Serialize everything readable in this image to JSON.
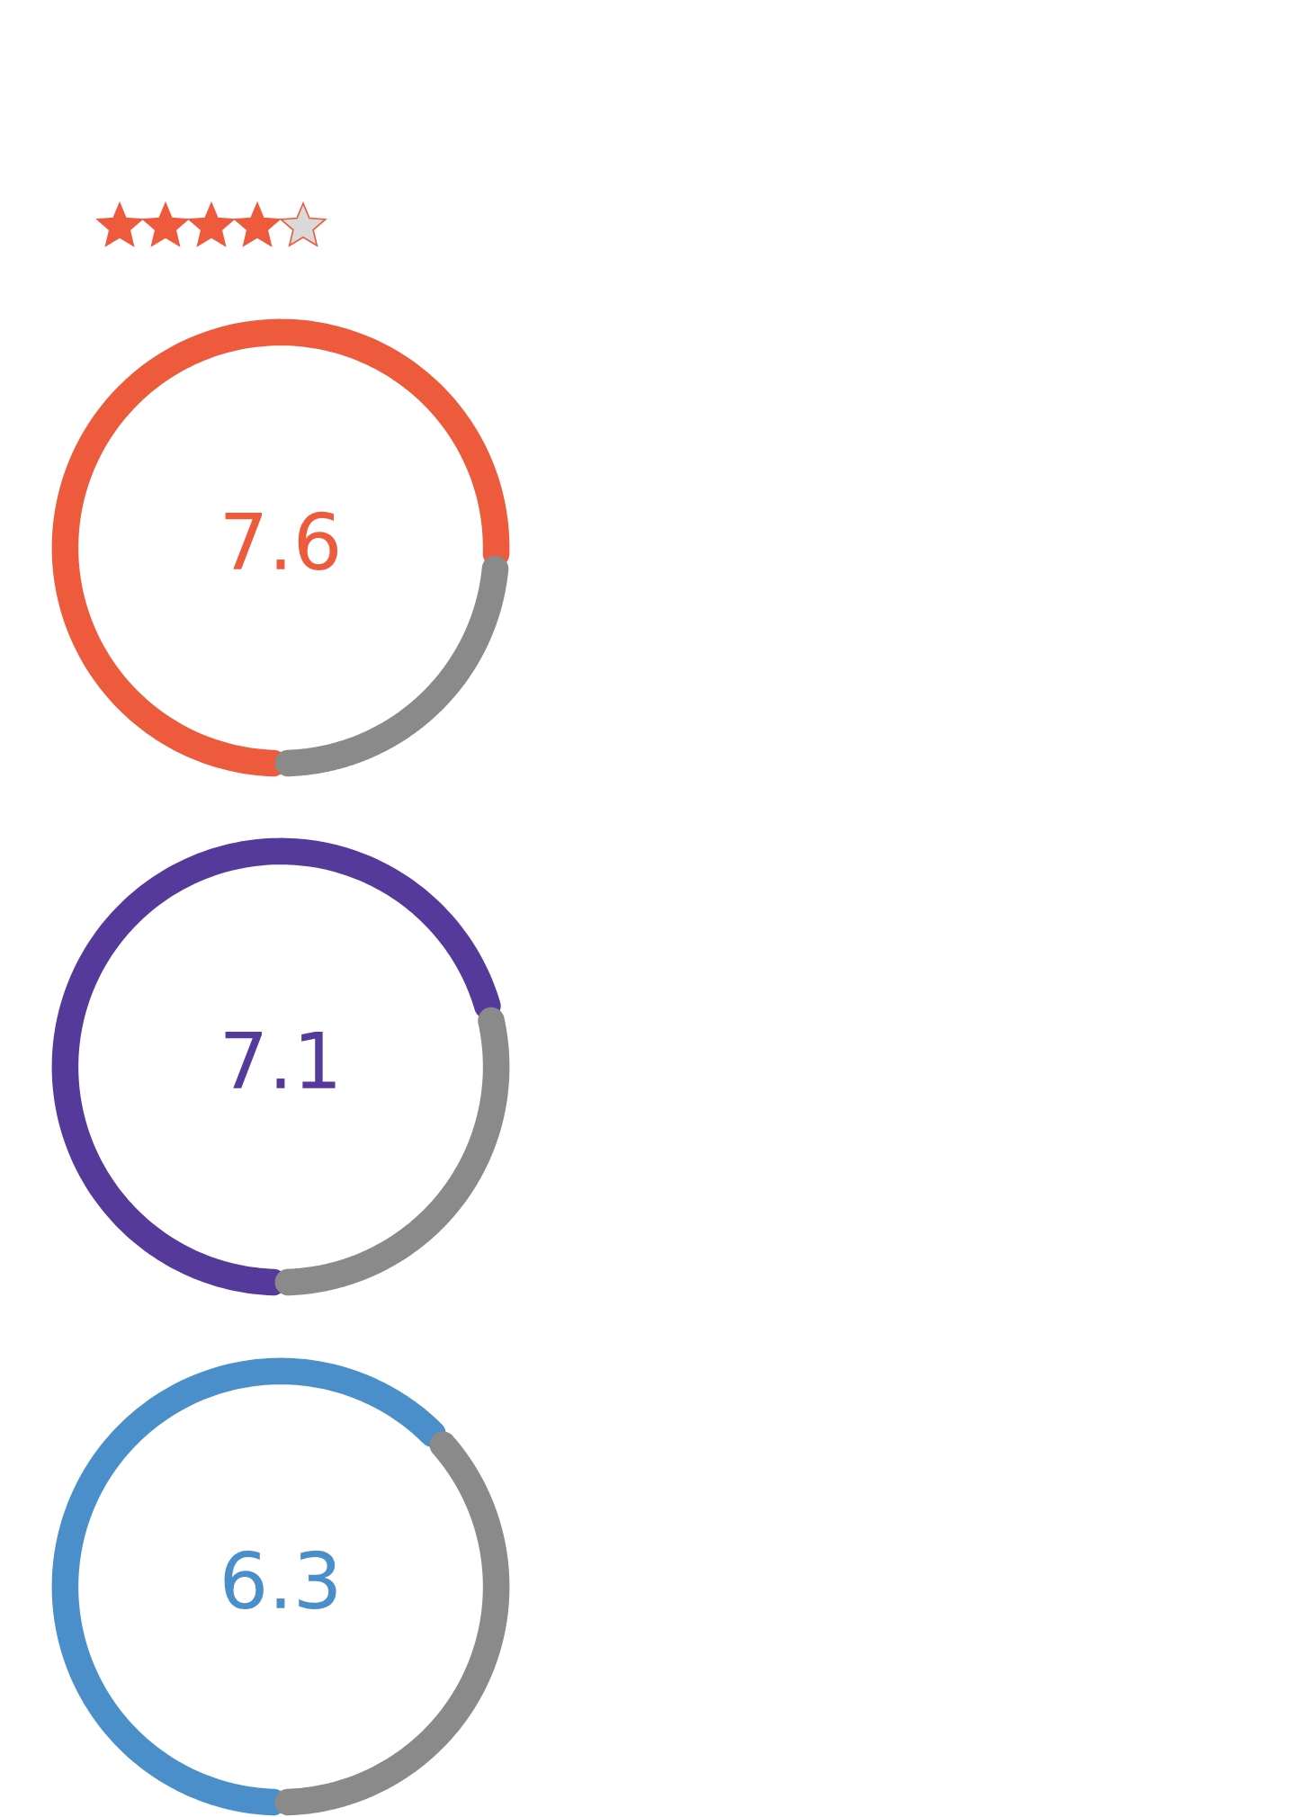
{
  "chart_data": [
    {
      "type": "donut",
      "categories": [
        null,
        null
      ],
      "values": [
        7.6,
        2.4
      ],
      "colors": [
        "#ee5a3c",
        "#8a8a8a"
      ],
      "value_labels": [
        "7.6",
        null
      ]
    },
    {
      "type": "donut",
      "categories": [
        null,
        null
      ],
      "values": [
        7.1,
        2.9
      ],
      "colors": [
        "#553a9c",
        "#8a8a8a"
      ],
      "value_labels": [
        "7.1",
        null
      ]
    },
    {
      "type": "donut",
      "categories": [
        null,
        null
      ],
      "values": [
        6.3,
        3.7
      ],
      "colors": [
        "#4a8fca",
        "#8a8a8a"
      ],
      "value_labels": [
        "6.3",
        null
      ]
    }
  ]
}
